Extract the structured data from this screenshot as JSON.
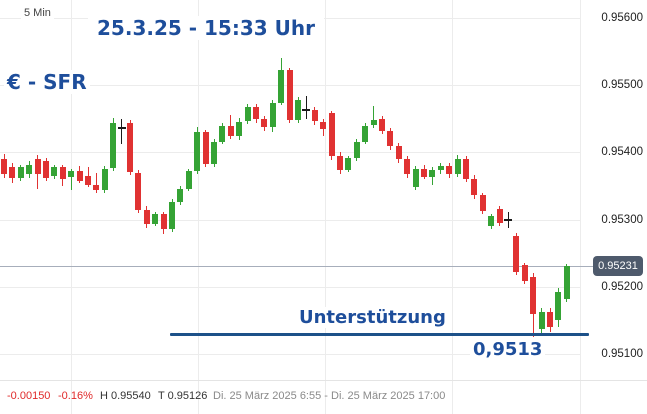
{
  "header": {
    "interval": "5 Min",
    "title": "25.3.25 - 15:33 Uhr",
    "instrument": "€ - SFR"
  },
  "colors": {
    "up": "#35a335",
    "down": "#e03232",
    "doji": "#1a1a1a",
    "accent_blue": "#1e4e9b",
    "support_line": "#1d5189",
    "grid": "#ececec",
    "price_line": "#a7aebb",
    "badge_bg": "#4e5a6c",
    "badge_text": "#ffffff"
  },
  "chart_data": {
    "type": "candlestick",
    "title": "25.3.25 - 15:33 Uhr",
    "instrument": "€ - SFR",
    "interval": "5 Min",
    "y_axis": {
      "tick_labels": [
        "0.95600",
        "0.95500",
        "0.95400",
        "0.95300",
        "0.95200",
        "0.95100"
      ],
      "tick_prices": [
        0.956,
        0.955,
        0.954,
        0.953,
        0.952,
        0.951
      ],
      "grid": true,
      "side": "right"
    },
    "candles": [
      [
        0.9539,
        0.95398,
        0.95362,
        0.95368
      ],
      [
        0.95378,
        0.95384,
        0.95354,
        0.95362
      ],
      [
        0.95362,
        0.95382,
        0.95358,
        0.95378
      ],
      [
        0.95368,
        0.95388,
        0.95362,
        0.95382
      ],
      [
        0.9539,
        0.95396,
        0.95346,
        0.95368
      ],
      [
        0.95388,
        0.95392,
        0.95358,
        0.95362
      ],
      [
        0.95365,
        0.95382,
        0.9536,
        0.95378
      ],
      [
        0.95378,
        0.95382,
        0.9535,
        0.9536
      ],
      [
        0.95364,
        0.95376,
        0.95344,
        0.95372
      ],
      [
        0.95372,
        0.9538,
        0.95354,
        0.95358
      ],
      [
        0.95365,
        0.95378,
        0.95348,
        0.95352
      ],
      [
        0.95352,
        0.9537,
        0.9534,
        0.95344
      ],
      [
        0.95344,
        0.9538,
        0.9534,
        0.95376
      ],
      [
        0.95376,
        0.95452,
        0.95372,
        0.95444
      ],
      [
        0.95436,
        0.9545,
        0.95412,
        0.95436
      ],
      [
        0.95444,
        0.95448,
        0.95366,
        0.9537
      ],
      [
        0.9537,
        0.95374,
        0.9531,
        0.95315
      ],
      [
        0.95315,
        0.9532,
        0.95288,
        0.95294
      ],
      [
        0.95294,
        0.95312,
        0.9529,
        0.95308
      ],
      [
        0.95308,
        0.95312,
        0.95279,
        0.95286
      ],
      [
        0.95286,
        0.9533,
        0.95282,
        0.95326
      ],
      [
        0.95326,
        0.9535,
        0.95322,
        0.95346
      ],
      [
        0.95346,
        0.95376,
        0.95342,
        0.95372
      ],
      [
        0.95372,
        0.95438,
        0.95368,
        0.9543
      ],
      [
        0.9543,
        0.95434,
        0.95378,
        0.95382
      ],
      [
        0.95382,
        0.9542,
        0.95378,
        0.95416
      ],
      [
        0.95416,
        0.95444,
        0.95412,
        0.9544
      ],
      [
        0.9544,
        0.95456,
        0.9542,
        0.95424
      ],
      [
        0.95424,
        0.95452,
        0.95418,
        0.95446
      ],
      [
        0.95446,
        0.95472,
        0.95442,
        0.95468
      ],
      [
        0.95468,
        0.95472,
        0.95444,
        0.9545
      ],
      [
        0.9545,
        0.95454,
        0.95432,
        0.95438
      ],
      [
        0.95438,
        0.95478,
        0.9543,
        0.95474
      ],
      [
        0.95474,
        0.9554,
        0.9547,
        0.95522
      ],
      [
        0.95522,
        0.95526,
        0.95444,
        0.95448
      ],
      [
        0.95448,
        0.95482,
        0.95444,
        0.95478
      ],
      [
        0.95463,
        0.95484,
        0.9545,
        0.95463
      ],
      [
        0.95463,
        0.95468,
        0.9544,
        0.95446
      ],
      [
        0.95446,
        0.9545,
        0.95424,
        0.95435
      ],
      [
        0.95458,
        0.95462,
        0.95388,
        0.95394
      ],
      [
        0.95394,
        0.954,
        0.95368,
        0.95374
      ],
      [
        0.95374,
        0.95394,
        0.9537,
        0.95391
      ],
      [
        0.95391,
        0.9542,
        0.95387,
        0.95416
      ],
      [
        0.95416,
        0.95444,
        0.95412,
        0.9544
      ],
      [
        0.9544,
        0.95469,
        0.95436,
        0.95448
      ],
      [
        0.9545,
        0.95454,
        0.95428,
        0.95432
      ],
      [
        0.95432,
        0.95436,
        0.95404,
        0.9541
      ],
      [
        0.9541,
        0.95414,
        0.95384,
        0.9539
      ],
      [
        0.9539,
        0.95394,
        0.95362,
        0.95368
      ],
      [
        0.95348,
        0.9538,
        0.95344,
        0.95376
      ],
      [
        0.95376,
        0.95382,
        0.9536,
        0.95364
      ],
      [
        0.95364,
        0.95378,
        0.95352,
        0.95374
      ],
      [
        0.95374,
        0.95384,
        0.95368,
        0.9538
      ],
      [
        0.9538,
        0.95385,
        0.95362,
        0.95368
      ],
      [
        0.95368,
        0.95396,
        0.95364,
        0.9539
      ],
      [
        0.9539,
        0.95394,
        0.95356,
        0.95361
      ],
      [
        0.95361,
        0.95366,
        0.9533,
        0.95336
      ],
      [
        0.95336,
        0.9534,
        0.95308,
        0.95312
      ],
      [
        0.9529,
        0.95308,
        0.95286,
        0.95306
      ],
      [
        0.95316,
        0.9532,
        0.9529,
        0.95295
      ],
      [
        0.95299,
        0.95312,
        0.95288,
        0.95299
      ],
      [
        0.95276,
        0.9528,
        0.95218,
        0.95222
      ],
      [
        0.95232,
        0.95236,
        0.95204,
        0.95208
      ],
      [
        0.95215,
        0.9522,
        0.95126,
        0.9516
      ],
      [
        0.95137,
        0.95168,
        0.9513,
        0.95163
      ],
      [
        0.95163,
        0.95168,
        0.95132,
        0.9514
      ],
      [
        0.9515,
        0.95198,
        0.9514,
        0.95193
      ],
      [
        0.95182,
        0.95234,
        0.95178,
        0.95231
      ]
    ],
    "last_price": {
      "value": 0.95231,
      "label": "0.95231"
    },
    "support": {
      "price": 0.9513,
      "label": "Unterstützung",
      "value_label": "0,9513"
    },
    "session_high": "0.95540",
    "session_low": "0.95126"
  },
  "status_bar": {
    "change": "-0.00150",
    "change_pct": "-0.16%",
    "high": "H 0.95540",
    "low": "T 0.95126",
    "time_range": "Di. 25 März 2025 6:55 - Di. 25 März 2025 17:00"
  }
}
